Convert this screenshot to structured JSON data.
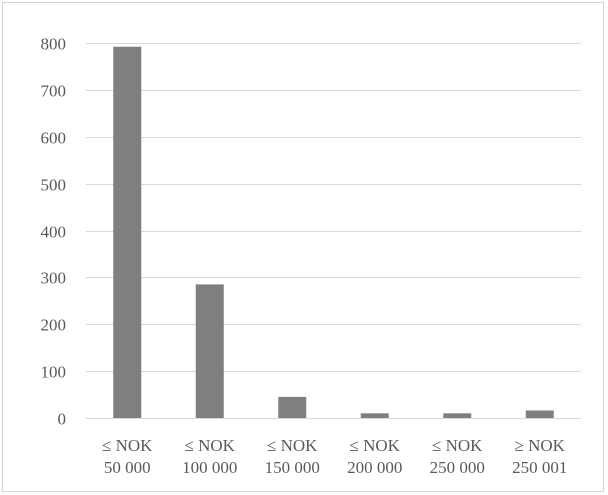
{
  "chart_data": {
    "type": "bar",
    "categories": [
      [
        "≤ NOK",
        "50 000"
      ],
      [
        "≤ NOK",
        "100 000"
      ],
      [
        "≤ NOK",
        "150 000"
      ],
      [
        "≤ NOK",
        "200 000"
      ],
      [
        "≤ NOK",
        "250 000"
      ],
      [
        "≥ NOK",
        "250 001"
      ]
    ],
    "values": [
      792,
      285,
      45,
      10,
      10,
      16
    ],
    "title": "",
    "xlabel": "",
    "ylabel": "",
    "ylim": [
      0,
      800
    ],
    "yticks": [
      "0",
      "100",
      "200",
      "300",
      "400",
      "500",
      "600",
      "700",
      "800"
    ],
    "grid": true,
    "legend": "none",
    "colors": {
      "bar": "#7f7f7f",
      "grid": "#d9d9d9",
      "text": "#595959",
      "border": "#d4d4d4"
    }
  }
}
